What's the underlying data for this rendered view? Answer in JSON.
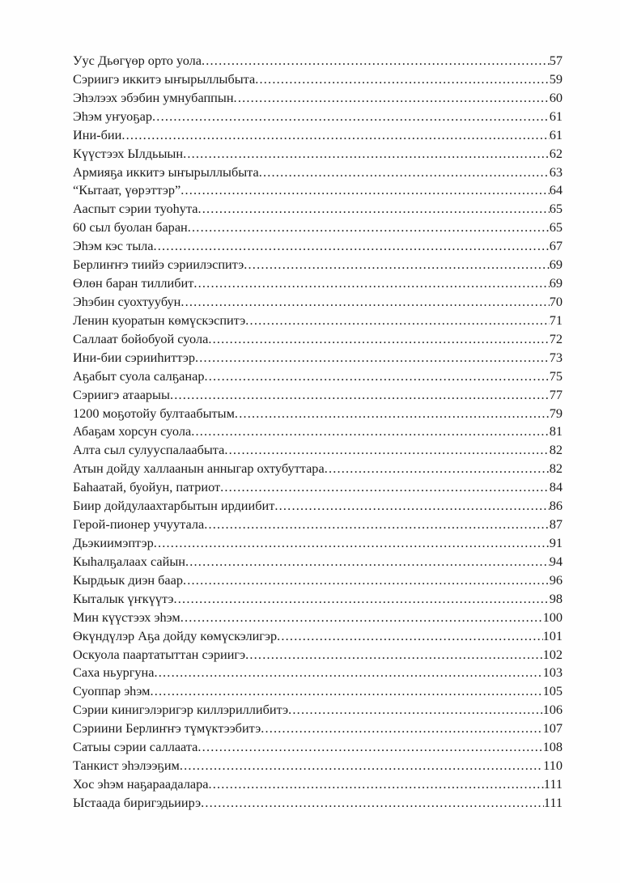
{
  "toc": [
    {
      "title": "Уус Дьөгүөр орто уола",
      "page": "57"
    },
    {
      "title": "Сэриигэ иккитэ ыҥырыллыбыта",
      "page": "59"
    },
    {
      "title": "Эһэлээх эбэбин умнубаппын",
      "page": "60"
    },
    {
      "title": "Эһэм уҥуоҕар",
      "page": "61"
    },
    {
      "title": "Ини-бии",
      "page": "61"
    },
    {
      "title": "Күүстээх Ылдьыын",
      "page": "62"
    },
    {
      "title": "Армияҕа иккитэ ыҥырыллыбыта",
      "page": "63"
    },
    {
      "title": "“Кытаат, үөрэттэр”",
      "page": "64"
    },
    {
      "title": "Ааспыт сэрии туоһута",
      "page": "65"
    },
    {
      "title": "60 сыл буолан баран",
      "page": "65"
    },
    {
      "title": "Эһэм кэс тыла",
      "page": "67"
    },
    {
      "title": "Берлиҥҥэ тиийэ сэриилэспитэ",
      "page": "69"
    },
    {
      "title": "Өлөн баран тиллибит",
      "page": "69"
    },
    {
      "title": "Эһэбин суохтуубун",
      "page": "70"
    },
    {
      "title": "Ленин куоратын көмүскэспитэ",
      "page": "71"
    },
    {
      "title": "Саллаат бойобуой суола",
      "page": "72"
    },
    {
      "title": "Ини-бии сэрииһиттэр",
      "page": "73"
    },
    {
      "title": "Аҕабыт суола салҕанар",
      "page": "75"
    },
    {
      "title": "Сэриигэ атаарыы",
      "page": "77"
    },
    {
      "title": "1200 моҕотойу бултаабытым",
      "page": "79"
    },
    {
      "title": "Абаҕам хорсун суола",
      "page": "81"
    },
    {
      "title": "Алта сыл сулууспалаабыта",
      "page": "82"
    },
    {
      "title": "Атын дойду халлаанын анныгар охтубуттара",
      "page": "82"
    },
    {
      "title": "Баһаатай, буойун, патриот",
      "page": "84"
    },
    {
      "title": "Биир дойдулаахтарбытын ирдиибит",
      "page": "86"
    },
    {
      "title": "Герой-пионер учуутала",
      "page": "87"
    },
    {
      "title": "Дьэкиимэптэр",
      "page": "91"
    },
    {
      "title": "Кыһалҕалаах сайын",
      "page": "94"
    },
    {
      "title": "Кырдьык диэн баар",
      "page": "96"
    },
    {
      "title": "Кыталык үҥкүүтэ",
      "page": "98"
    },
    {
      "title": "Мин күүстээх эһэм",
      "page": "100"
    },
    {
      "title": "Өкүндүлэр Аҕа дойду көмүскэлигэр",
      "page": "101"
    },
    {
      "title": "Оскуола паартатыттан сэриигэ",
      "page": "102"
    },
    {
      "title": "Саха ньургуна",
      "page": "103"
    },
    {
      "title": "Суоппар эһэм",
      "page": "105"
    },
    {
      "title": "Сэрии кинигэлэригэр киллэриллибитэ",
      "page": "106"
    },
    {
      "title": "Сэриини Берлиҥҥэ түмүктээбитэ",
      "page": "107"
    },
    {
      "title": "Сатыы сэрии саллаата",
      "page": "108"
    },
    {
      "title": "Танкист эһэлээҕим",
      "page": "110"
    },
    {
      "title": "Хос эһэм наҕараадалара",
      "page": "111"
    },
    {
      "title": "Ыстаада биригэдьиирэ",
      "page": "111"
    }
  ]
}
